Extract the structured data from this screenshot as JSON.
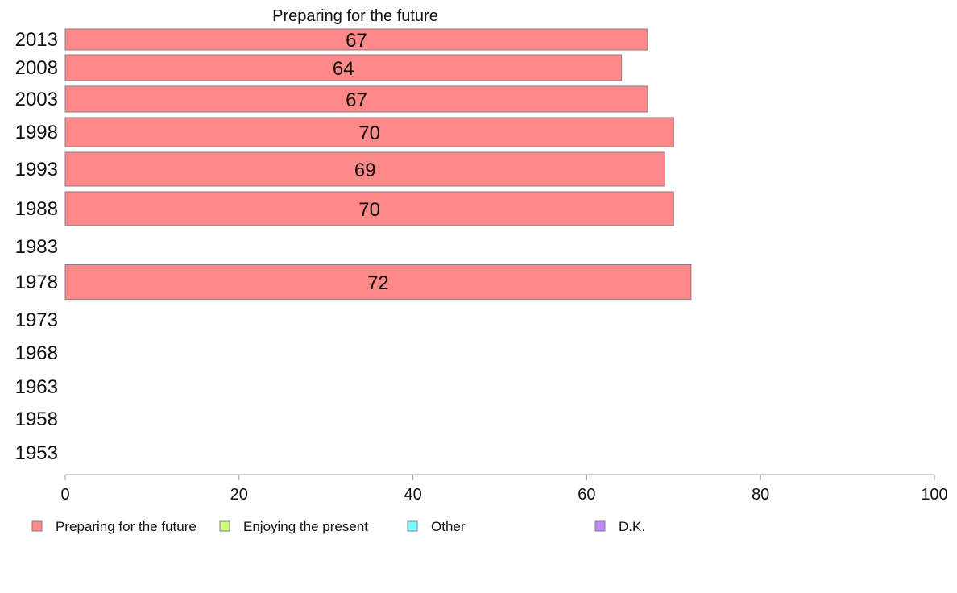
{
  "chart_data": {
    "type": "bar",
    "orientation": "horizontal",
    "title": "Preparing for the future",
    "categories": [
      "2013",
      "2008",
      "2003",
      "1998",
      "1993",
      "1988",
      "1983",
      "1978",
      "1973",
      "1968",
      "1963",
      "1958",
      "1953"
    ],
    "series": [
      {
        "name": "Preparing for the future",
        "color": "#ff8888",
        "values": [
          67,
          64,
          67,
          70,
          69,
          70,
          null,
          72,
          null,
          null,
          null,
          null,
          null
        ]
      }
    ],
    "xlim": [
      0,
      100
    ],
    "xticks": [
      0,
      20,
      40,
      60,
      80,
      100
    ],
    "grid": false,
    "legend": {
      "placement": "bottom",
      "items": [
        {
          "label": "Preparing for the future",
          "color": "#ff8888"
        },
        {
          "label": "Enjoying the present",
          "color": "#ccff77"
        },
        {
          "label": "Other",
          "color": "#77ffff"
        },
        {
          "label": "D.K.",
          "color": "#bb88ff"
        }
      ]
    }
  }
}
